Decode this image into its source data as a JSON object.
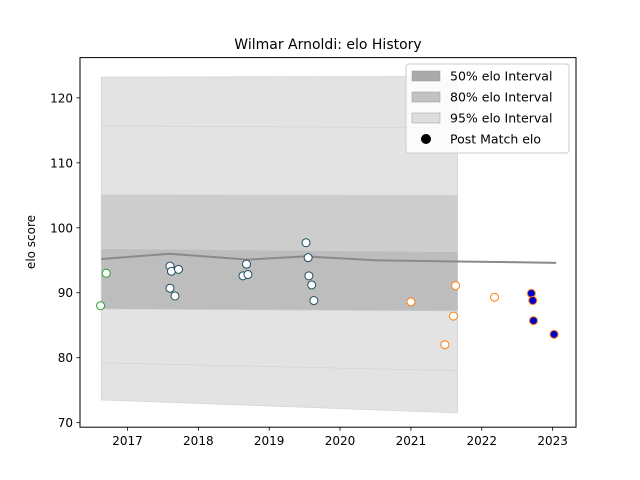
{
  "chart_data": {
    "type": "scatter",
    "title": "Wilmar Arnoldi: elo History",
    "xlabel": "",
    "ylabel": "elo score",
    "xlim": [
      2016.33,
      2023.33
    ],
    "ylim": [
      69.3,
      126.2
    ],
    "xticks": [
      2017,
      2018,
      2019,
      2020,
      2021,
      2022,
      2023
    ],
    "yticks": [
      70,
      80,
      90,
      100,
      110,
      120
    ],
    "legend_position": "upper right",
    "legend": [
      {
        "label": "50% elo Interval",
        "kind": "band",
        "color": "#aaaaaa"
      },
      {
        "label": "80% elo Interval",
        "kind": "band",
        "color": "#c2c2c2"
      },
      {
        "label": "95% elo Interval",
        "kind": "band",
        "color": "#dddddd"
      },
      {
        "label": "Post Match elo",
        "kind": "marker",
        "color": "#000000"
      }
    ],
    "mean_line": {
      "x": [
        2016.63,
        2017.6,
        2018.7,
        2019.5,
        2020.5,
        2021.65,
        2022.5,
        2023.05
      ],
      "y": [
        95.2,
        96.0,
        95.1,
        95.6,
        95.0,
        94.8,
        94.7,
        94.6
      ]
    },
    "bands": [
      {
        "name": "95% elo Interval",
        "color": "#e3e3e3",
        "x": [
          2016.63,
          2021.66
        ],
        "upper": [
          123.2,
          123.3
        ],
        "lower": [
          73.5,
          71.5
        ]
      },
      {
        "name": "95% elo Interval",
        "color": "#e3e3e3",
        "x": [
          2016.63,
          2021.66
        ],
        "upper": [
          115.7,
          115.4
        ],
        "lower": [
          79.2,
          78.0
        ]
      },
      {
        "name": "80% elo Interval",
        "color": "#cdcdcd",
        "x": [
          2016.63,
          2021.66
        ],
        "upper": [
          105.1,
          105.0
        ],
        "lower": [
          87.5,
          87.2
        ]
      },
      {
        "name": "50% elo Interval",
        "color": "#bdbdbd",
        "x": [
          2016.63,
          2021.66
        ],
        "upper": [
          96.8,
          96.3
        ],
        "lower": [
          87.5,
          87.2
        ]
      }
    ],
    "series": [
      {
        "edge_color": "#2ca02c",
        "face_color": "#ffffff",
        "points": [
          [
            2016.62,
            88.0
          ],
          [
            2016.7,
            93.0
          ]
        ]
      },
      {
        "edge_color": "#1f4e5f",
        "face_color": "#ffffff",
        "points": [
          [
            2017.6,
            94.1
          ],
          [
            2017.62,
            93.3
          ],
          [
            2017.72,
            93.6
          ],
          [
            2017.6,
            90.7
          ],
          [
            2017.67,
            89.5
          ],
          [
            2018.63,
            92.6
          ],
          [
            2018.68,
            94.4
          ],
          [
            2018.7,
            92.8
          ],
          [
            2019.52,
            97.7
          ],
          [
            2019.55,
            95.4
          ],
          [
            2019.56,
            92.6
          ],
          [
            2019.6,
            91.2
          ],
          [
            2019.63,
            88.8
          ]
        ]
      },
      {
        "edge_color": "#ff7f0e",
        "face_color": "#ffffff",
        "points": [
          [
            2021.0,
            88.6
          ],
          [
            2021.48,
            82.0
          ],
          [
            2021.6,
            86.4
          ],
          [
            2021.63,
            91.1
          ],
          [
            2022.18,
            89.3
          ]
        ]
      },
      {
        "edge_color": "#ff7f0e",
        "face_color": "#0000cc",
        "points": [
          [
            2022.7,
            89.9
          ],
          [
            2022.72,
            88.8
          ],
          [
            2022.73,
            85.7
          ],
          [
            2023.02,
            83.6
          ]
        ]
      }
    ]
  }
}
